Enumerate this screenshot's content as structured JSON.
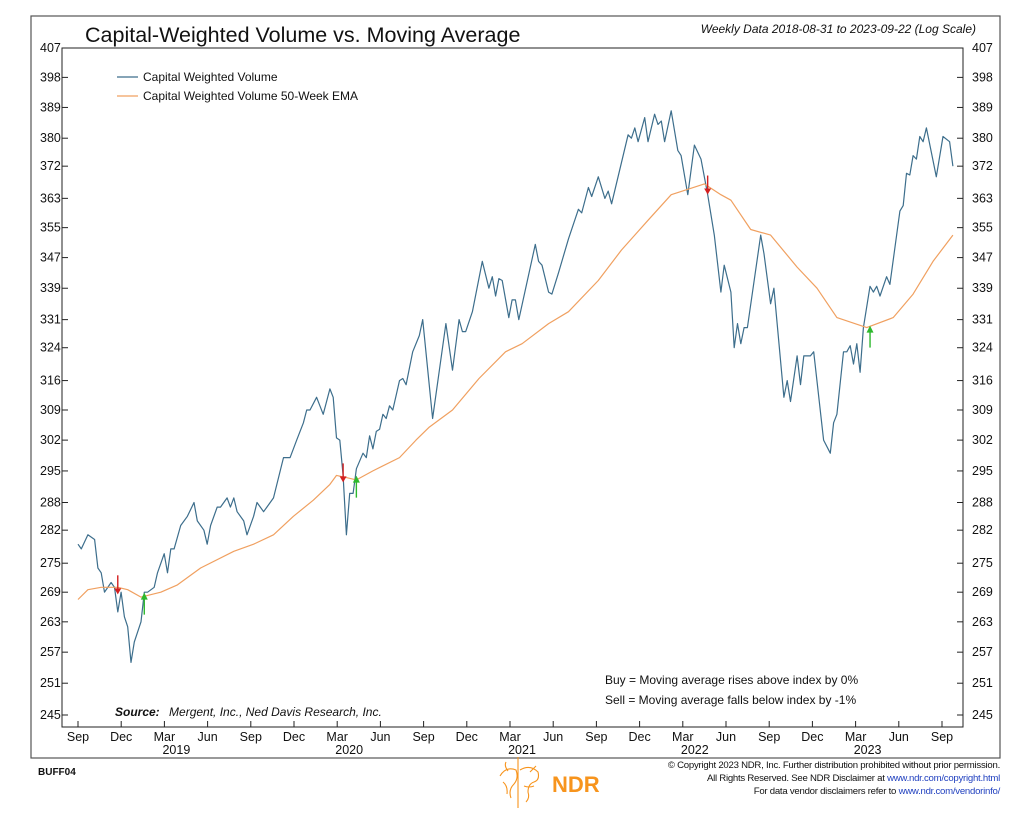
{
  "header": {
    "title": "Capital-Weighted Volume vs. Moving Average",
    "subtitle": "Weekly Data 2018-08-31 to 2023-09-22 (Log Scale)"
  },
  "notes": {
    "buy_rule": "Buy = Moving average rises above index by 0%",
    "sell_rule": "Sell = Moving average falls below index by -1%",
    "source_label": "Source:",
    "source_text": "Mergent, Inc., Ned Davis Research, Inc."
  },
  "footer": {
    "code": "BUFF04",
    "brand": "NDR",
    "copyright": "© Copyright 2023 NDR, Inc. Further distribution prohibited without prior permission.",
    "rights_prefix": "All Rights Reserved. See NDR Disclaimer at ",
    "rights_link": "www.ndr.com/copyright.html",
    "vendor_prefix": "For data vendor disclaimers refer to ",
    "vendor_link": "www.ndr.com/vendorinfo/"
  },
  "colors": {
    "cwv": "#3d6e8c",
    "ema": "#f0a060",
    "buy": "#2db82d",
    "sell": "#d42020",
    "brand": "#f7941d"
  },
  "chart_data": {
    "type": "line",
    "title": "Capital-Weighted Volume vs. Moving Average",
    "x_unit": "weeks since 2018-08-31",
    "y_scale": "log",
    "ylim": [
      245,
      407
    ],
    "y_ticks": [
      407,
      398,
      389,
      380,
      372,
      363,
      355,
      347,
      339,
      331,
      324,
      316,
      309,
      302,
      295,
      288,
      282,
      275,
      269,
      263,
      257,
      251,
      245
    ],
    "x_tick_labels": [
      "Sep",
      "Dec",
      "Mar",
      "Jun",
      "Sep",
      "Dec",
      "Mar",
      "Jun",
      "Sep",
      "Dec",
      "Mar",
      "Jun",
      "Sep",
      "Dec",
      "Mar",
      "Jun",
      "Sep",
      "Dec",
      "Mar",
      "Jun",
      "Sep"
    ],
    "x_year_labels": [
      {
        "label": "2019",
        "tick": 2
      },
      {
        "label": "2020",
        "tick": 6
      },
      {
        "label": "2021",
        "tick": 10
      },
      {
        "label": "2022",
        "tick": 14
      },
      {
        "label": "2023",
        "tick": 18
      }
    ],
    "legend": {
      "placement": "top-left",
      "entries": [
        "Capital Weighted Volume",
        "Capital Weighted Volume 50-Week EMA"
      ]
    },
    "series": [
      {
        "name": "Capital Weighted Volume",
        "points": [
          [
            0,
            279
          ],
          [
            1,
            278
          ],
          [
            3,
            281
          ],
          [
            5,
            280
          ],
          [
            6,
            274
          ],
          [
            7,
            273
          ],
          [
            8,
            269
          ],
          [
            10,
            271
          ],
          [
            11,
            270
          ],
          [
            12,
            265
          ],
          [
            13,
            269
          ],
          [
            14,
            264
          ],
          [
            15,
            262
          ],
          [
            16,
            255
          ],
          [
            17,
            259
          ],
          [
            19,
            263
          ],
          [
            20,
            269
          ],
          [
            21,
            269
          ],
          [
            23,
            270
          ],
          [
            24,
            273
          ],
          [
            26,
            277
          ],
          [
            27,
            273
          ],
          [
            28,
            278
          ],
          [
            29,
            278
          ],
          [
            31,
            283
          ],
          [
            33,
            285
          ],
          [
            35,
            288
          ],
          [
            36,
            284
          ],
          [
            38,
            282
          ],
          [
            39,
            279
          ],
          [
            40,
            283
          ],
          [
            42,
            287
          ],
          [
            43,
            287
          ],
          [
            45,
            289
          ],
          [
            46,
            287
          ],
          [
            47,
            289
          ],
          [
            48,
            286
          ],
          [
            50,
            284
          ],
          [
            51,
            281
          ],
          [
            53,
            285
          ],
          [
            54,
            288
          ],
          [
            56,
            286
          ],
          [
            57,
            287
          ],
          [
            59,
            289
          ],
          [
            61,
            295
          ],
          [
            62,
            298
          ],
          [
            64,
            298
          ],
          [
            66,
            302
          ],
          [
            68,
            306
          ],
          [
            69,
            309
          ],
          [
            70,
            309
          ],
          [
            72,
            312
          ],
          [
            74,
            308
          ],
          [
            76,
            314
          ],
          [
            77,
            312
          ],
          [
            78,
            302.5
          ],
          [
            79,
            302
          ],
          [
            80,
            294
          ],
          [
            81,
            281
          ],
          [
            82,
            290
          ],
          [
            83,
            290
          ],
          [
            84,
            295.5
          ],
          [
            86,
            299
          ],
          [
            87,
            298
          ],
          [
            88,
            303
          ],
          [
            89,
            300
          ],
          [
            90,
            304
          ],
          [
            91,
            304.5
          ],
          [
            92,
            308
          ],
          [
            93,
            307
          ],
          [
            94,
            310
          ],
          [
            95,
            309
          ],
          [
            97,
            316
          ],
          [
            98,
            316.5
          ],
          [
            99,
            315
          ],
          [
            101,
            323
          ],
          [
            103,
            327
          ],
          [
            104,
            331
          ],
          [
            107,
            307
          ],
          [
            111,
            330
          ],
          [
            113,
            318.5
          ],
          [
            115,
            331
          ],
          [
            116,
            328
          ],
          [
            117,
            328
          ],
          [
            119,
            333
          ],
          [
            122,
            346
          ],
          [
            124,
            339
          ],
          [
            125,
            342
          ],
          [
            126,
            337
          ],
          [
            127,
            341.5
          ],
          [
            128,
            341
          ],
          [
            130,
            331.5
          ],
          [
            131,
            336
          ],
          [
            132,
            336
          ],
          [
            133,
            331
          ],
          [
            138,
            350.5
          ],
          [
            139,
            346
          ],
          [
            140,
            345
          ],
          [
            142,
            338
          ],
          [
            143,
            337.5
          ],
          [
            145,
            343
          ],
          [
            148,
            352
          ],
          [
            151,
            360
          ],
          [
            152,
            359
          ],
          [
            154,
            366
          ],
          [
            155,
            363.5
          ],
          [
            157,
            369
          ],
          [
            159,
            363
          ],
          [
            160,
            365
          ],
          [
            161,
            361.5
          ],
          [
            166,
            381
          ],
          [
            167,
            380
          ],
          [
            168,
            383
          ],
          [
            169,
            379
          ],
          [
            171,
            386
          ],
          [
            172,
            379
          ],
          [
            174,
            387
          ],
          [
            175,
            384
          ],
          [
            176,
            385
          ],
          [
            177,
            379
          ],
          [
            179,
            388
          ],
          [
            181,
            376.5
          ],
          [
            182,
            375
          ],
          [
            184,
            364
          ],
          [
            186,
            378
          ],
          [
            188,
            374
          ],
          [
            190,
            364
          ],
          [
            192,
            353
          ],
          [
            194,
            338
          ],
          [
            195,
            345
          ],
          [
            197,
            338
          ],
          [
            198,
            324
          ],
          [
            199,
            330
          ],
          [
            200,
            325
          ],
          [
            201,
            329
          ],
          [
            202,
            329
          ],
          [
            206,
            353
          ],
          [
            207,
            348
          ],
          [
            209,
            335
          ],
          [
            210,
            339
          ],
          [
            213,
            312
          ],
          [
            214,
            316
          ],
          [
            215,
            311
          ],
          [
            217,
            322
          ],
          [
            218,
            315
          ],
          [
            219,
            322
          ],
          [
            221,
            322
          ],
          [
            222,
            323
          ],
          [
            225,
            302
          ],
          [
            227,
            299
          ],
          [
            228,
            306
          ],
          [
            229,
            308
          ],
          [
            231,
            323
          ],
          [
            232,
            323
          ],
          [
            233,
            324.5
          ],
          [
            234,
            320
          ],
          [
            235,
            325
          ],
          [
            236,
            318
          ],
          [
            237,
            329
          ],
          [
            239,
            339.5
          ],
          [
            240,
            338
          ],
          [
            241,
            339.5
          ],
          [
            242,
            337
          ],
          [
            244,
            342
          ],
          [
            245,
            340
          ],
          [
            248,
            359.5
          ],
          [
            249,
            361
          ],
          [
            250,
            370
          ],
          [
            251,
            369.5
          ],
          [
            252,
            375
          ],
          [
            253,
            374
          ],
          [
            254,
            380.5
          ],
          [
            255,
            379
          ],
          [
            256,
            383
          ],
          [
            259,
            369
          ],
          [
            261,
            380.5
          ],
          [
            263,
            379
          ],
          [
            264,
            372
          ]
        ]
      },
      {
        "name": "Capital Weighted Volume 50-Week EMA",
        "points": [
          [
            0,
            267.5
          ],
          [
            3,
            269.5
          ],
          [
            7,
            270
          ],
          [
            12,
            270
          ],
          [
            15,
            269.5
          ],
          [
            19,
            268
          ],
          [
            25,
            269
          ],
          [
            30,
            270.5
          ],
          [
            37,
            274
          ],
          [
            47,
            277.5
          ],
          [
            53,
            279
          ],
          [
            59,
            281
          ],
          [
            65,
            285
          ],
          [
            71,
            288.5
          ],
          [
            76,
            292
          ],
          [
            78,
            294
          ],
          [
            81,
            293.5
          ],
          [
            84,
            293
          ],
          [
            89,
            295
          ],
          [
            97,
            298
          ],
          [
            102,
            302
          ],
          [
            106,
            305
          ],
          [
            113,
            309
          ],
          [
            121,
            316.5
          ],
          [
            129,
            323
          ],
          [
            134,
            325
          ],
          [
            142,
            330
          ],
          [
            148,
            333
          ],
          [
            157,
            341
          ],
          [
            164,
            349
          ],
          [
            172,
            357
          ],
          [
            179,
            364
          ],
          [
            184,
            365.5
          ],
          [
            189,
            367
          ],
          [
            194,
            364
          ],
          [
            197,
            362.5
          ],
          [
            203,
            354.5
          ],
          [
            209,
            353
          ],
          [
            217,
            344.5
          ],
          [
            223,
            339
          ],
          [
            229,
            331.5
          ],
          [
            238,
            329
          ],
          [
            246,
            331.5
          ],
          [
            252,
            337.5
          ],
          [
            258,
            346
          ],
          [
            264,
            353
          ]
        ]
      }
    ],
    "signals": [
      {
        "type": "sell",
        "week": 12,
        "value": 270
      },
      {
        "type": "buy",
        "week": 20,
        "value": 268.5
      },
      {
        "type": "sell",
        "week": 80,
        "value": 294
      },
      {
        "type": "buy",
        "week": 84,
        "value": 293.5
      },
      {
        "type": "sell",
        "week": 190,
        "value": 366
      },
      {
        "type": "buy",
        "week": 239,
        "value": 329
      }
    ]
  }
}
